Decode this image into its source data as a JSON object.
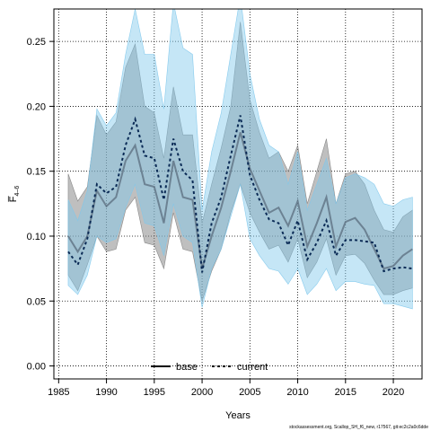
{
  "chart_data": {
    "type": "line",
    "xlabel": "Years",
    "ylabel": "F̅",
    "ylabel_subscript": "4–6",
    "xlim": [
      1984.5,
      2023
    ],
    "ylim": [
      -0.01,
      0.275
    ],
    "x_ticks": [
      1985,
      1990,
      1995,
      2000,
      2005,
      2010,
      2015,
      2020
    ],
    "y_ticks": [
      0.0,
      0.05,
      0.1,
      0.15,
      0.2,
      0.25
    ],
    "y_tick_labels": [
      "0.00",
      "0.05",
      "0.10",
      "0.15",
      "0.20",
      "0.25"
    ],
    "grid": true,
    "legend_placement": "bottom-center",
    "x": [
      1986,
      1987,
      1988,
      1989,
      1990,
      1991,
      1992,
      1993,
      1994,
      1995,
      1996,
      1997,
      1998,
      1999,
      2000,
      2001,
      2002,
      2003,
      2004,
      2005,
      2006,
      2007,
      2008,
      2009,
      2010,
      2011,
      2012,
      2013,
      2014,
      2015,
      2016,
      2017,
      2018,
      2019,
      2020,
      2021,
      2022
    ],
    "series": [
      {
        "name": "base",
        "style": "solid",
        "color": "#000000",
        "line_color": "#556677",
        "band_color": "#7f7f7f",
        "values": [
          0.1,
          0.088,
          0.1,
          0.135,
          0.123,
          0.13,
          0.158,
          0.17,
          0.14,
          0.138,
          0.11,
          0.158,
          0.13,
          0.128,
          0.075,
          0.1,
          0.122,
          0.15,
          0.18,
          0.152,
          0.135,
          0.118,
          0.122,
          0.108,
          0.127,
          0.092,
          0.11,
          0.13,
          0.092,
          0.111,
          0.114,
          0.105,
          0.09,
          0.075,
          0.077,
          0.085,
          0.09
        ],
        "lower": [
          0.07,
          0.058,
          0.078,
          0.1,
          0.088,
          0.09,
          0.12,
          0.13,
          0.095,
          0.093,
          0.075,
          0.118,
          0.09,
          0.088,
          0.05,
          0.073,
          0.09,
          0.118,
          0.14,
          0.118,
          0.103,
          0.09,
          0.093,
          0.08,
          0.098,
          0.068,
          0.08,
          0.098,
          0.07,
          0.085,
          0.086,
          0.079,
          0.066,
          0.055,
          0.055,
          0.058,
          0.06
        ],
        "upper": [
          0.148,
          0.127,
          0.138,
          0.193,
          0.178,
          0.188,
          0.23,
          0.248,
          0.2,
          0.195,
          0.16,
          0.215,
          0.178,
          0.178,
          0.11,
          0.14,
          0.168,
          0.2,
          0.265,
          0.205,
          0.18,
          0.16,
          0.165,
          0.15,
          0.17,
          0.125,
          0.15,
          0.175,
          0.125,
          0.148,
          0.15,
          0.14,
          0.12,
          0.105,
          0.103,
          0.115,
          0.12
        ]
      },
      {
        "name": "current",
        "style": "dashed",
        "color": "#000000",
        "line_color": "#0a2a55",
        "band_color": "#7ec8ec",
        "values": [
          0.088,
          0.078,
          0.098,
          0.14,
          0.133,
          0.138,
          0.17,
          0.19,
          0.162,
          0.16,
          0.128,
          0.175,
          0.15,
          0.143,
          0.072,
          0.11,
          0.13,
          0.162,
          0.193,
          0.147,
          0.128,
          0.113,
          0.11,
          0.093,
          0.112,
          0.082,
          0.095,
          0.112,
          0.085,
          0.097,
          0.097,
          0.096,
          0.095,
          0.073,
          0.075,
          0.076,
          0.075
        ],
        "lower": [
          0.062,
          0.055,
          0.07,
          0.1,
          0.095,
          0.098,
          0.122,
          0.14,
          0.11,
          0.108,
          0.085,
          0.125,
          0.1,
          0.095,
          0.045,
          0.075,
          0.09,
          0.115,
          0.14,
          0.098,
          0.085,
          0.075,
          0.073,
          0.063,
          0.075,
          0.055,
          0.063,
          0.075,
          0.058,
          0.065,
          0.065,
          0.063,
          0.062,
          0.048,
          0.048,
          0.046,
          0.044
        ],
        "upper": [
          0.128,
          0.112,
          0.135,
          0.198,
          0.185,
          0.195,
          0.24,
          0.275,
          0.24,
          0.24,
          0.198,
          0.28,
          0.245,
          0.24,
          0.12,
          0.165,
          0.195,
          0.24,
          0.285,
          0.225,
          0.19,
          0.17,
          0.165,
          0.14,
          0.165,
          0.12,
          0.14,
          0.16,
          0.125,
          0.145,
          0.148,
          0.145,
          0.14,
          0.125,
          0.123,
          0.128,
          0.13
        ]
      }
    ]
  },
  "footer": "stockassessment.org, Scallop_SH_f6_new, r17567, git:ec2c2a0c6dde"
}
